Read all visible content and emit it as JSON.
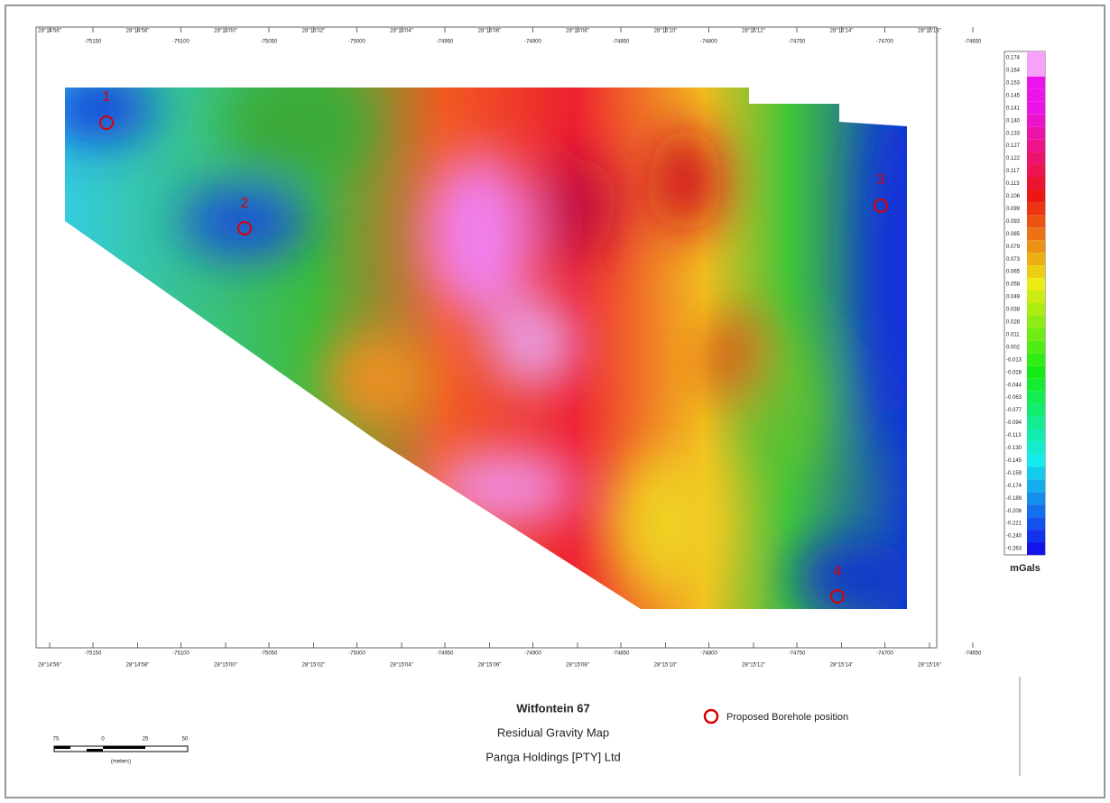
{
  "title": "Witfontein 67",
  "subtitle": "Residual Gravity Map",
  "company": "Panga Holdings [PTY] Ltd",
  "legend": {
    "label": "Proposed Borehole position"
  },
  "boreholes": [
    "1",
    "2",
    "3",
    "4"
  ],
  "colorbar": {
    "unit": "mGals",
    "labels": [
      "0.174",
      "0.164",
      "0.153",
      "0.145",
      "0.141",
      "0.140",
      "0.133",
      "0.127",
      "0.122",
      "0.117",
      "0.113",
      "0.106",
      "0.099",
      "0.093",
      "0.085",
      "0.079",
      "0.073",
      "0.065",
      "0.058",
      "0.049",
      "0.038",
      "0.028",
      "0.011",
      "0.002",
      "-0.013",
      "-0.028",
      "-0.044",
      "-0.063",
      "-0.077",
      "-0.094",
      "-0.113",
      "-0.130",
      "-0.145",
      "-0.159",
      "-0.174",
      "-0.189",
      "-0.206",
      "-0.221",
      "-0.240",
      "-0.263"
    ]
  },
  "axes": {
    "top_dms": [
      "28°14'56\"",
      "28°14'58\"",
      "28°15'00\"",
      "28°15'02\"",
      "28°15'04\"",
      "28°15'06\"",
      "28°15'08\"",
      "28°15'10\"",
      "28°15'12\"",
      "28°15'14\"",
      "28°15'16\""
    ],
    "top_metres": [
      "-75150",
      "-75100",
      "-75050",
      "-75000",
      "-74950",
      "-74900",
      "-74850",
      "-74800",
      "-74750",
      "-74700",
      "-74650"
    ],
    "bottom_dms": [
      "28°14'56\"",
      "28°14'58\"",
      "28°15'00\"",
      "28°15'02\"",
      "28°15'04\"",
      "28°15'06\"",
      "28°15'08\"",
      "28°15'10\"",
      "28°15'12\"",
      "28°15'14\"",
      "28°15'16\""
    ],
    "bottom_metres": [
      "-75150",
      "-75100",
      "-75050",
      "-75000",
      "-74950",
      "-74900",
      "-74850",
      "-74800",
      "-74750",
      "-74700",
      "-74650"
    ]
  },
  "scale_bar": {
    "labels": [
      "75",
      "0",
      "25",
      "50"
    ],
    "unit": "(meters)"
  }
}
